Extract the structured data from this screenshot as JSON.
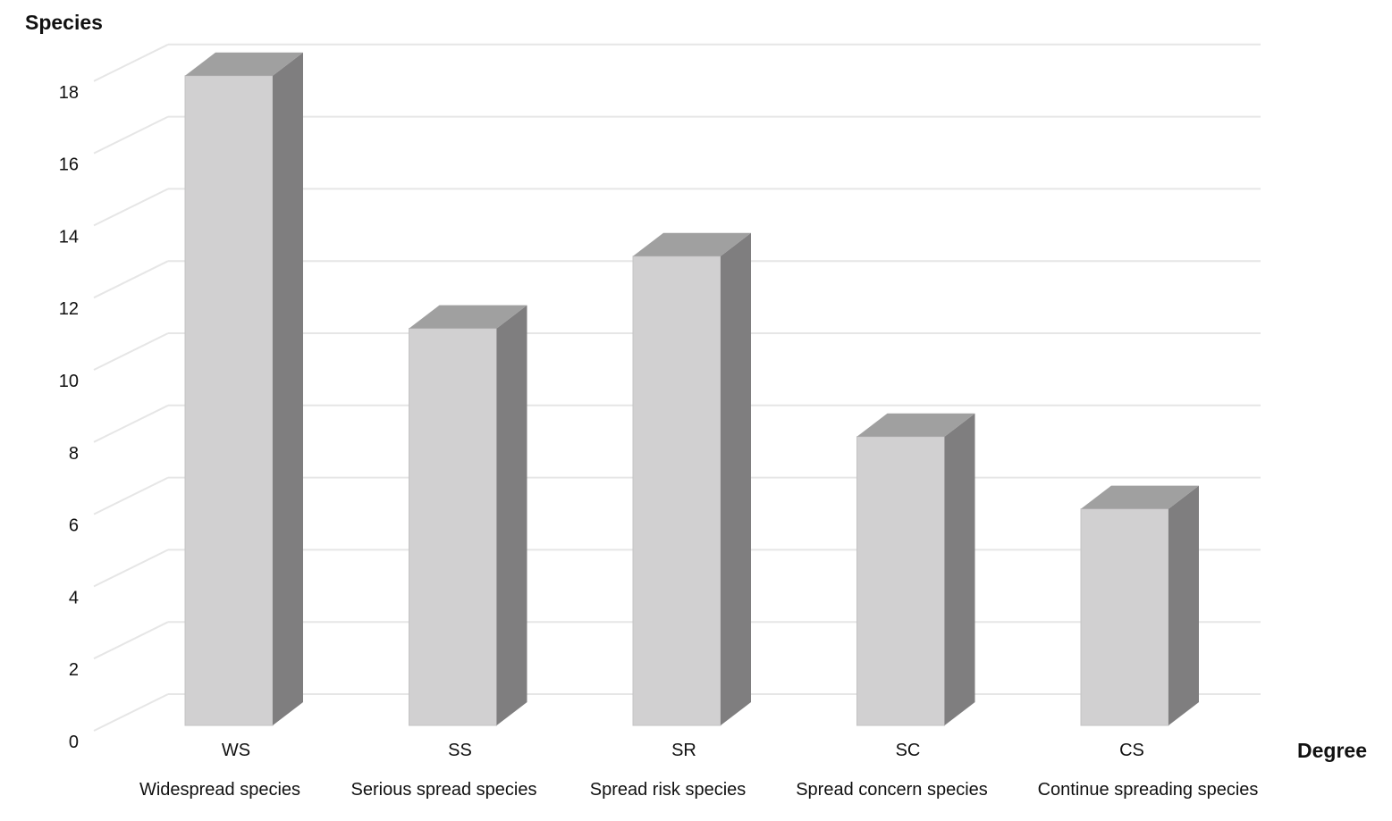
{
  "chart_data": {
    "type": "bar",
    "ylabel": "Species",
    "xlabel": "Degree",
    "categories": [
      "WS",
      "SS",
      "SR",
      "SC",
      "CS"
    ],
    "category_descriptions": [
      "Widespread species",
      "Serious spread species",
      "Spread risk species",
      "Spread concern species",
      "Continue spreading species"
    ],
    "values": [
      18,
      11,
      13,
      8,
      6
    ],
    "ylim": [
      0,
      18
    ],
    "yticks": [
      "0",
      "2",
      "4",
      "6",
      "8",
      "10",
      "12",
      "14",
      "16",
      "18"
    ],
    "grid": true,
    "legend": "none",
    "style": "3d",
    "colors": {
      "bar_front": "#d1d0d1",
      "bar_side": "#7f7e7f",
      "bar_top": "#a0a0a0",
      "grid": "#e6e6e6",
      "text": "#111111"
    }
  }
}
